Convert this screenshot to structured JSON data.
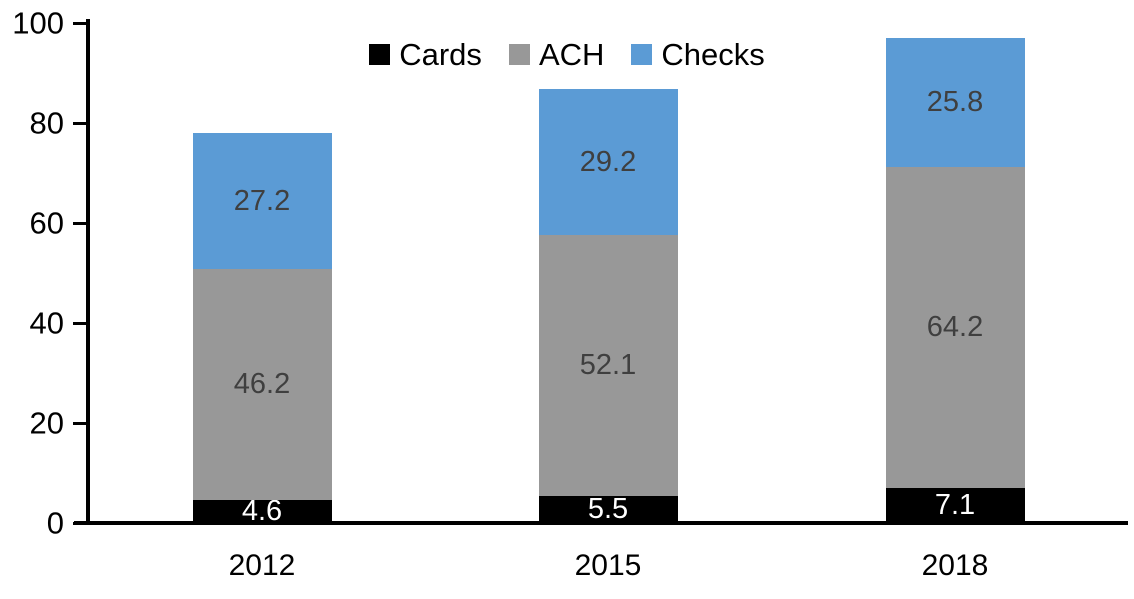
{
  "chart_data": {
    "type": "bar",
    "stacked": true,
    "title": "",
    "xlabel": "",
    "ylabel": "",
    "categories": [
      "2012",
      "2015",
      "2018"
    ],
    "series": [
      {
        "name": "Cards",
        "color": "#000000",
        "label_color": "#ffffff",
        "values": [
          4.6,
          5.5,
          7.1
        ]
      },
      {
        "name": "ACH",
        "color": "#989898",
        "label_color": "#3f3f3f",
        "values": [
          46.2,
          52.1,
          64.2
        ]
      },
      {
        "name": "Checks",
        "color": "#5b9bd5",
        "label_color": "#3f3f3f",
        "values": [
          27.2,
          29.2,
          25.8
        ]
      }
    ],
    "totals": [
      78.0,
      86.8,
      97.1
    ],
    "yticks": [
      0,
      20,
      40,
      60,
      80,
      100
    ],
    "ylim": [
      0,
      100
    ],
    "grid": false,
    "legend_position": "top-center",
    "axis_color": "#000000",
    "background_color": "#ffffff"
  }
}
